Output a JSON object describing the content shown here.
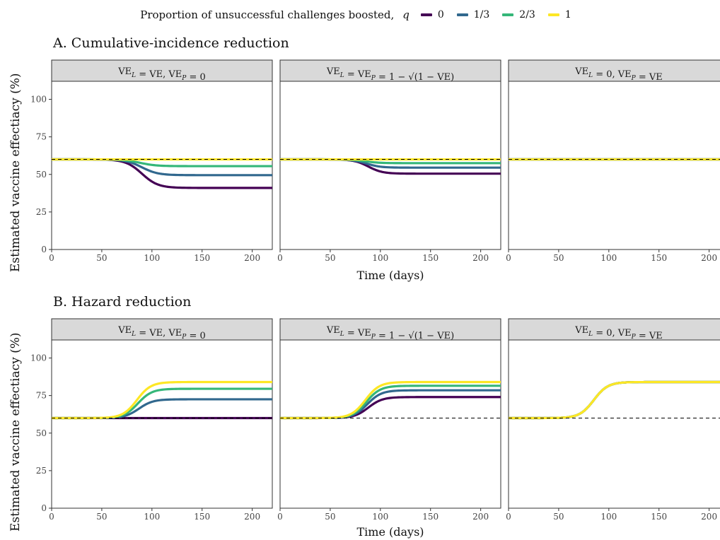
{
  "legend": {
    "title": "Proportion of unsuccessful challenges boosted,",
    "symbol": "q",
    "items": [
      {
        "label": "0",
        "color": "#440154"
      },
      {
        "label": "1/3",
        "color": "#31688E"
      },
      {
        "label": "2/3",
        "color": "#35B779"
      },
      {
        "label": "1",
        "color": "#FDE725"
      }
    ]
  },
  "chart_data": [
    {
      "type": "line",
      "title": "A. Cumulative-incidence reduction",
      "xlabel": "Time (days)",
      "ylabel": "Estimated vaccine effectiacy (%)",
      "xlim": [
        0,
        220
      ],
      "ylim": [
        0,
        112
      ],
      "x_ticks": [
        0,
        50,
        100,
        150,
        200
      ],
      "y_ticks": [
        0,
        25,
        50,
        75,
        100
      ],
      "reference_line": 60,
      "panels": [
        {
          "strip": "VE_L = VE, VE_P = 0",
          "series": [
            {
              "name": "0",
              "start": 60,
              "end": 41,
              "midpoint": 90,
              "width": 8
            },
            {
              "name": "1/3",
              "start": 60,
              "end": 49.5,
              "midpoint": 90,
              "width": 8
            },
            {
              "name": "2/3",
              "start": 60,
              "end": 55.5,
              "midpoint": 88,
              "width": 8
            },
            {
              "name": "1",
              "start": 60,
              "end": 60,
              "midpoint": 90,
              "width": 8
            }
          ]
        },
        {
          "strip": "VE_L = VE_P = 1 − √(1 − VE)",
          "series": [
            {
              "name": "0",
              "start": 60,
              "end": 50.5,
              "midpoint": 88,
              "width": 7
            },
            {
              "name": "1/3",
              "start": 60,
              "end": 54.5,
              "midpoint": 86,
              "width": 7
            },
            {
              "name": "2/3",
              "start": 60,
              "end": 57.5,
              "midpoint": 85,
              "width": 7
            },
            {
              "name": "1",
              "start": 60,
              "end": 60,
              "midpoint": 85,
              "width": 7
            }
          ]
        },
        {
          "strip": "VE_L = 0, VE_P = VE",
          "series": [
            {
              "name": "0",
              "start": 60,
              "end": 60,
              "midpoint": 85,
              "width": 7
            },
            {
              "name": "1/3",
              "start": 60,
              "end": 60,
              "midpoint": 85,
              "width": 7
            },
            {
              "name": "2/3",
              "start": 60,
              "end": 60,
              "midpoint": 85,
              "width": 7
            },
            {
              "name": "1",
              "start": 60,
              "end": 60,
              "midpoint": 85,
              "width": 7
            }
          ]
        }
      ]
    },
    {
      "type": "line",
      "title": "B. Hazard reduction",
      "xlabel": "Time (days)",
      "ylabel": "Estimated vaccine effectiacy (%)",
      "xlim": [
        0,
        220
      ],
      "ylim": [
        0,
        112
      ],
      "x_ticks": [
        0,
        50,
        100,
        150,
        200
      ],
      "y_ticks": [
        0,
        25,
        50,
        75,
        100
      ],
      "reference_line": 60,
      "panels": [
        {
          "strip": "VE_L = VE, VE_P = 0",
          "series": [
            {
              "name": "0",
              "start": 60,
              "end": 60,
              "midpoint": 90,
              "width": 8
            },
            {
              "name": "1/3",
              "start": 60,
              "end": 72.5,
              "midpoint": 87,
              "width": 7
            },
            {
              "name": "2/3",
              "start": 60,
              "end": 79.5,
              "midpoint": 86,
              "width": 7
            },
            {
              "name": "1",
              "start": 60,
              "end": 84,
              "midpoint": 85,
              "width": 7
            }
          ]
        },
        {
          "strip": "VE_L = VE_P = 1 − √(1 − VE)",
          "series": [
            {
              "name": "0",
              "start": 60,
              "end": 74,
              "midpoint": 88,
              "width": 7
            },
            {
              "name": "1/3",
              "start": 60,
              "end": 78.5,
              "midpoint": 87,
              "width": 7
            },
            {
              "name": "2/3",
              "start": 60,
              "end": 81.5,
              "midpoint": 86,
              "width": 7
            },
            {
              "name": "1",
              "start": 60,
              "end": 84,
              "midpoint": 85,
              "width": 7
            }
          ]
        },
        {
          "strip": "VE_L = 0, VE_P = VE",
          "series": [
            {
              "name": "0",
              "start": 60,
              "end": 84,
              "midpoint": 85,
              "width": 7
            },
            {
              "name": "1/3",
              "start": 60,
              "end": 84,
              "midpoint": 85,
              "width": 7
            },
            {
              "name": "2/3",
              "start": 60,
              "end": 84,
              "midpoint": 85,
              "width": 7
            },
            {
              "name": "1",
              "start": 60,
              "end": 84,
              "midpoint": 85,
              "width": 7
            }
          ]
        }
      ]
    }
  ]
}
